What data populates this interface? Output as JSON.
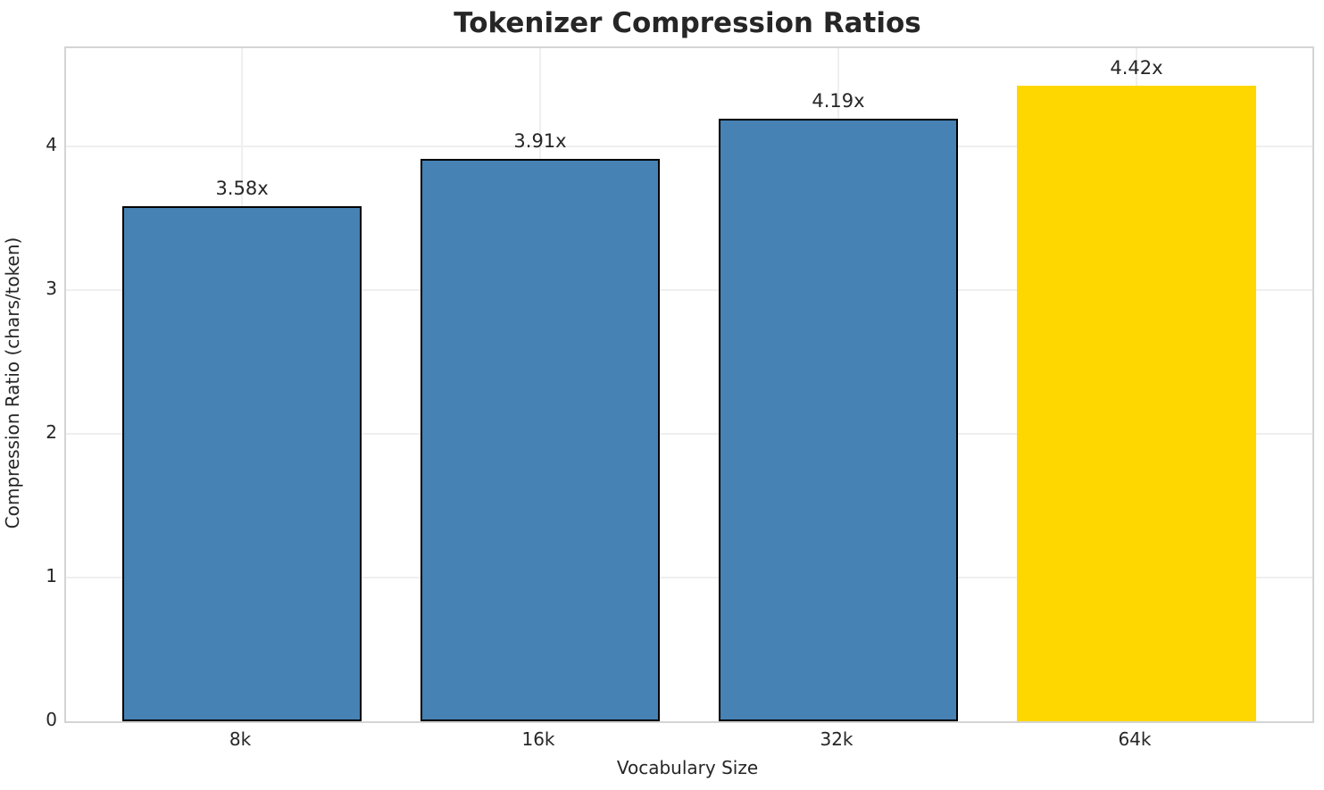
{
  "chart_data": {
    "type": "bar",
    "title": "Tokenizer Compression Ratios",
    "xlabel": "Vocabulary Size",
    "ylabel": "Compression Ratio (chars/token)",
    "categories": [
      "8k",
      "16k",
      "32k",
      "64k"
    ],
    "values": [
      3.58,
      3.91,
      4.19,
      4.42
    ],
    "bar_labels": [
      "3.58x",
      "3.91x",
      "4.19x",
      "4.42x"
    ],
    "bar_colors": [
      "#4682b4",
      "#4682b4",
      "#4682b4",
      "#ffd700"
    ],
    "bar_edge_colors": [
      "#000000",
      "#000000",
      "#000000",
      null
    ],
    "highlight_index": 3,
    "yticks": [
      0,
      1,
      2,
      3,
      4
    ],
    "ylim": [
      0,
      4.68
    ],
    "xlim": [
      -0.59,
      3.59
    ],
    "bar_width_units": 0.8,
    "grid": true,
    "legend": null,
    "colors": {
      "bar_default": "#4682b4",
      "bar_highlight": "#ffd700",
      "bar_edge": "#000000",
      "grid": "#efefef",
      "spine": "#d4d4d4",
      "text": "#262626",
      "background": "#ffffff"
    }
  }
}
